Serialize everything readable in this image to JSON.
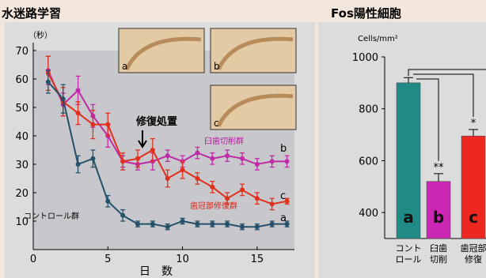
{
  "left_title": "水迷路学習",
  "right_title": "Fos陽性細胞",
  "chart_data": [
    {
      "type": "line",
      "title": "水迷路学習",
      "xlabel": "日　数",
      "ylabel": "（秒）",
      "xlim": [
        0,
        17.5
      ],
      "ylim": [
        0,
        70
      ],
      "xticks": [
        0,
        5,
        10,
        15
      ],
      "yticks": [
        10,
        20,
        30,
        40,
        50,
        60,
        70
      ],
      "x": [
        1,
        2,
        3,
        4,
        5,
        6,
        7,
        8,
        9,
        10,
        11,
        12,
        13,
        14,
        15,
        16,
        17
      ],
      "series": [
        {
          "name": "臼歯切削群",
          "letter": "b",
          "color": "#c02aa8",
          "values": [
            63,
            51,
            56,
            47,
            40,
            31,
            30,
            31,
            33,
            31,
            34,
            32,
            33,
            32,
            30,
            31,
            31
          ],
          "errors": [
            5,
            4,
            5,
            4,
            4,
            2,
            2,
            3,
            2,
            2,
            2,
            2,
            2,
            2,
            2,
            2,
            2
          ]
        },
        {
          "name": "歯冠部修復群",
          "letter": "c",
          "color": "#e0301e",
          "values": [
            62,
            52,
            48,
            44,
            44,
            31,
            32,
            35,
            25,
            28,
            25,
            22,
            18,
            21,
            18,
            16,
            17
          ],
          "errors": [
            6,
            5,
            4,
            5,
            4,
            3,
            3,
            4,
            3,
            3,
            2,
            2,
            2,
            2,
            2,
            2,
            1
          ]
        },
        {
          "name": "コントロール群",
          "letter": "a",
          "color": "#25506a",
          "values": [
            59,
            53,
            30,
            32,
            17,
            12,
            9,
            9,
            8,
            10,
            9,
            9,
            9,
            8,
            8,
            9,
            9
          ],
          "errors": [
            4,
            5,
            3,
            3,
            2,
            2,
            1,
            1,
            1,
            1,
            1,
            1,
            1,
            1,
            1,
            1,
            1
          ]
        }
      ],
      "annotations": [
        "修復処置",
        "臼歯切削群",
        "歯冠部修復群",
        "コントロール群",
        "a",
        "b",
        "c"
      ],
      "insets": [
        "a",
        "b",
        "c"
      ]
    },
    {
      "type": "bar",
      "title": "Fos陽性細胞",
      "ylabel": "Cells/mm²",
      "ylim": [
        300,
        1000
      ],
      "yticks": [
        400,
        600,
        800,
        1000
      ],
      "categories": [
        "コント\nロール",
        "臼歯\n切削",
        "歯冠部\n修復"
      ],
      "category_lines": [
        [
          "コント",
          "ロール"
        ],
        [
          "臼歯",
          "切削"
        ],
        [
          "歯冠部",
          "修復"
        ]
      ],
      "letters": [
        "a",
        "b",
        "c"
      ],
      "values": [
        900,
        520,
        695
      ],
      "errors": [
        20,
        30,
        25
      ],
      "significance": [
        "",
        "**",
        "*"
      ],
      "colors": [
        "#1f8a86",
        "#cc26b4",
        "#ee2820"
      ]
    }
  ]
}
